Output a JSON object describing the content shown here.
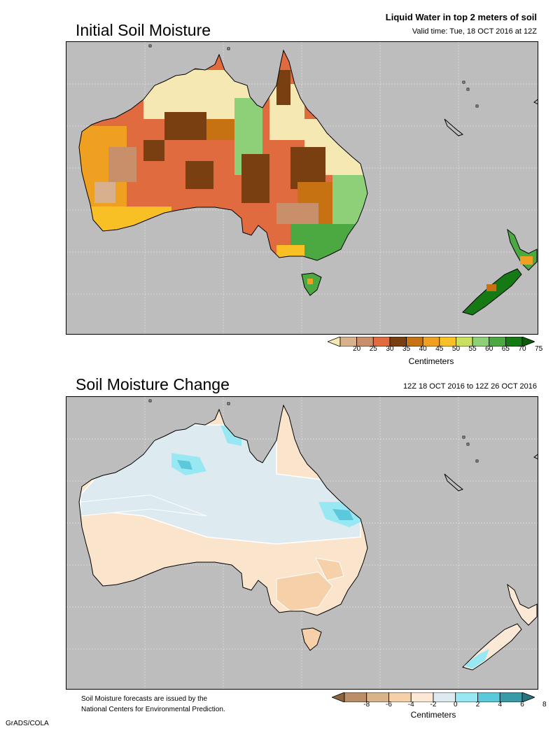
{
  "top": {
    "title": "Initial Soil Moisture",
    "subtitle_line1": "Liquid Water in top 2 meters of soil",
    "subtitle_line2": "Valid time: Tue, 18 OCT 2016 at 12Z",
    "colorbar": {
      "labels": [
        "20",
        "25",
        "30",
        "35",
        "40",
        "45",
        "50",
        "55",
        "60",
        "65",
        "70",
        "75"
      ],
      "colors": [
        "#f6e8b3",
        "#d8b08e",
        "#c8906a",
        "#e06b3f",
        "#7a3f10",
        "#c67212",
        "#f0a020",
        "#f8c024",
        "#c8e060",
        "#8ed078",
        "#4ca840",
        "#157a13",
        "#0b5c0b"
      ],
      "unit": "Centimeters"
    }
  },
  "bottom": {
    "title": "Soil Moisture Change",
    "subtitle": "12Z 18 OCT 2016 to 12Z 26 OCT 2016",
    "colorbar": {
      "labels": [
        "-8",
        "-6",
        "-4",
        "-2",
        "0",
        "2",
        "4",
        "6",
        "8"
      ],
      "colors": [
        "#8a6440",
        "#b98e68",
        "#d9b48a",
        "#f6d0a8",
        "#fbe9d5",
        "#ddeaf0",
        "#98e8f4",
        "#5cc8dc",
        "#3a9aa8",
        "#2a7480"
      ],
      "unit": "Centimeters"
    }
  },
  "footnote_line1": "Soil Moisture forecasts are issued by the",
  "footnote_line2": "National Centers for Environmental Prediction.",
  "credit": "GrADS/COLA",
  "colors": {
    "ocean": "#bdbdbd",
    "land_dry": "#fbe4cc",
    "wet": "#ddeaf0"
  }
}
